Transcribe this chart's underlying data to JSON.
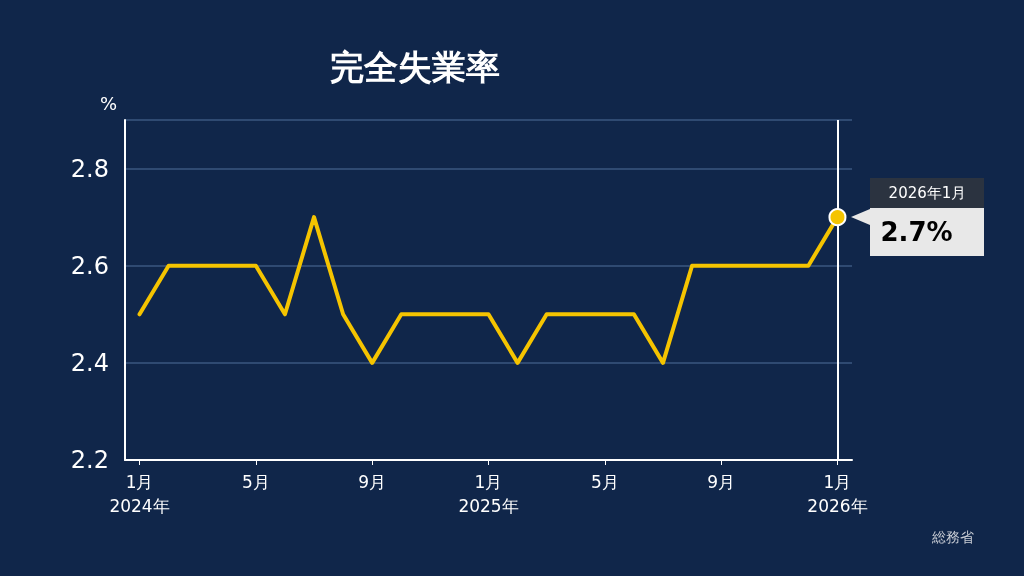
{
  "chart_data": {
    "type": "line",
    "title": "完全失業率",
    "ylabel": "%",
    "categories": [
      "1月\n2024年",
      null,
      null,
      null,
      "5月",
      null,
      null,
      null,
      "9月",
      null,
      null,
      null,
      "1月\n2025年",
      null,
      null,
      null,
      "5月",
      null,
      null,
      null,
      "9月",
      null,
      null,
      null,
      "1月\n2026年"
    ],
    "series": [
      {
        "color": "#f5c400",
        "values": [
          2.5,
          2.6,
          2.6,
          2.6,
          2.6,
          2.5,
          2.7,
          2.5,
          2.4,
          2.5,
          2.5,
          2.5,
          2.5,
          2.4,
          2.5,
          2.5,
          2.5,
          2.5,
          2.4,
          2.6,
          2.6,
          2.6,
          2.6,
          2.6,
          2.7
        ]
      }
    ],
    "ylim": [
      2.2,
      2.9
    ],
    "yticks": [
      2.2,
      2.4,
      2.6,
      2.8
    ],
    "grid": "y",
    "marker": "none",
    "line_style": "solid",
    "ref_lines": [
      {
        "axis": "x",
        "value": "1月\n2026年",
        "color": "#ffffff"
      }
    ],
    "annotations": [
      "2026年1月",
      "2.7%",
      "総務省"
    ]
  }
}
